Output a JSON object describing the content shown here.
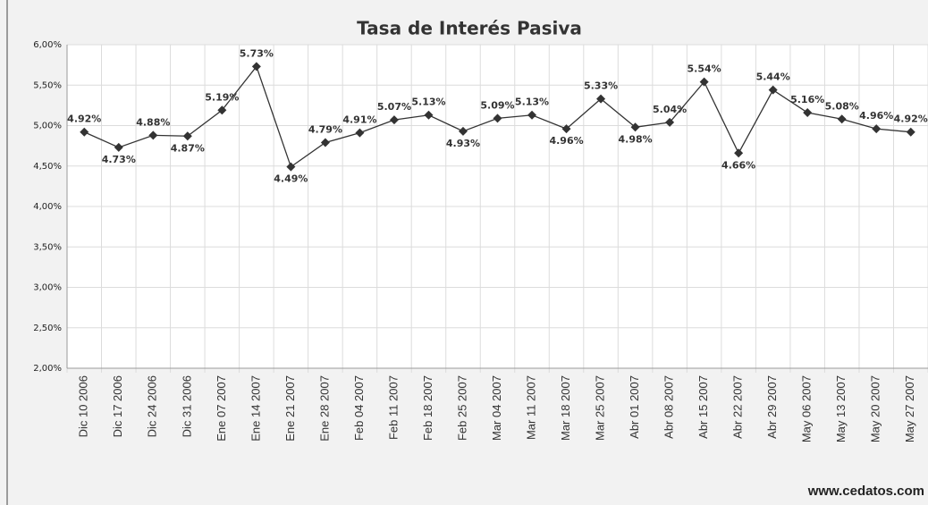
{
  "chart_data": {
    "type": "line",
    "title": "Tasa de Interés Pasiva",
    "categories": [
      "Dic 10 2006",
      "Dic 17 2006",
      "Dic 24 2006",
      "Dic 31 2006",
      "Ene 07 2007",
      "Ene 14 2007",
      "Ene 21 2007",
      "Ene 28 2007",
      "Feb 04 2007",
      "Feb 11 2007",
      "Feb 18 2007",
      "Feb 25 2007",
      "Mar 04 2007",
      "Mar 11 2007",
      "Mar 18 2007",
      "Mar 25 2007",
      "Abr 01 2007",
      "Abr 08 2007",
      "Abr 15 2007",
      "Abr 22 2007",
      "Abr 29 2007",
      "May 06 2007",
      "May 13 2007",
      "May 20 2007",
      "May 27 2007"
    ],
    "values": [
      4.92,
      4.73,
      4.88,
      4.87,
      5.19,
      5.73,
      4.49,
      4.79,
      4.91,
      5.07,
      5.13,
      4.93,
      5.09,
      5.13,
      4.96,
      5.33,
      4.98,
      5.04,
      5.54,
      4.66,
      5.44,
      5.16,
      5.08,
      4.96,
      4.92
    ],
    "value_labels": [
      "4.92%",
      "4.73%",
      "4.88%",
      "4.87%",
      "5.19%",
      "5.73%",
      "4.49%",
      "4.79%",
      "4.91%",
      "5.07%",
      "5.13%",
      "4.93%",
      "5.09%",
      "5.13%",
      "4.96%",
      "5.33%",
      "4.98%",
      "5.04%",
      "5.54%",
      "4.66%",
      "5.44%",
      "5.16%",
      "5.08%",
      "4.96%",
      "4.92%"
    ],
    "color": "#333333",
    "ylim": [
      2,
      6
    ],
    "yticks": [
      {
        "value": 2,
        "label": "2,00%"
      },
      {
        "value": 2.5,
        "label": "2,50%"
      },
      {
        "value": 3,
        "label": "3,00%"
      },
      {
        "value": 3.5,
        "label": "3,50%"
      },
      {
        "value": 4,
        "label": "4,00%"
      },
      {
        "value": 4.5,
        "label": "4,50%"
      },
      {
        "value": 5,
        "label": "5,00%"
      },
      {
        "value": 5.5,
        "label": "5,50%"
      },
      {
        "value": 6,
        "label": "6,00%"
      }
    ],
    "grid": true,
    "source": "www.cedatos.com"
  }
}
